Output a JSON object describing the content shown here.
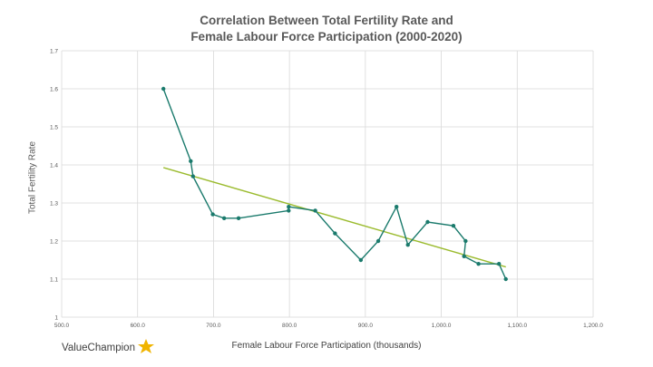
{
  "chart_data": {
    "type": "scatter",
    "title_line1": "Correlation Between Total Fertility Rate and",
    "title_line2": "Female Labour Force Participation (2000-2020)",
    "xlabel": "Female Labour Force Participation (thousands)",
    "ylabel": "Total Fertility Rate",
    "xlim": [
      500,
      1200
    ],
    "ylim": [
      1,
      1.7
    ],
    "x_ticks": [
      "500.0",
      "600.0",
      "700.0",
      "800.0",
      "900.0",
      "1,000.0",
      "1,100.0",
      "1,200.0"
    ],
    "y_ticks": [
      "1",
      "1.1",
      "1.2",
      "1.3",
      "1.4",
      "1.5",
      "1.6",
      "1.7"
    ],
    "grid": true,
    "series": [
      {
        "color": "#1a7a6c",
        "style": "line-with-markers",
        "points": [
          [
            634,
            1.6
          ],
          [
            670,
            1.41
          ],
          [
            673,
            1.37
          ],
          [
            699,
            1.27
          ],
          [
            714,
            1.26
          ],
          [
            733,
            1.26
          ],
          [
            799,
            1.28
          ],
          [
            799,
            1.29
          ],
          [
            834,
            1.28
          ],
          [
            860,
            1.22
          ],
          [
            894,
            1.15
          ],
          [
            917,
            1.2
          ],
          [
            941,
            1.29
          ],
          [
            956,
            1.19
          ],
          [
            982,
            1.25
          ],
          [
            1016,
            1.24
          ],
          [
            1032,
            1.2
          ],
          [
            1030,
            1.16
          ],
          [
            1049,
            1.14
          ],
          [
            1076,
            1.14
          ],
          [
            1085,
            1.1
          ]
        ]
      }
    ],
    "trendline": {
      "color": "#9bbb2e",
      "points": [
        [
          634,
          1.393
        ],
        [
          1085,
          1.132
        ]
      ]
    }
  },
  "branding": {
    "logo_text": "ValueChampion",
    "logo_text_color": "#404040",
    "star_color": "#f0b400"
  }
}
